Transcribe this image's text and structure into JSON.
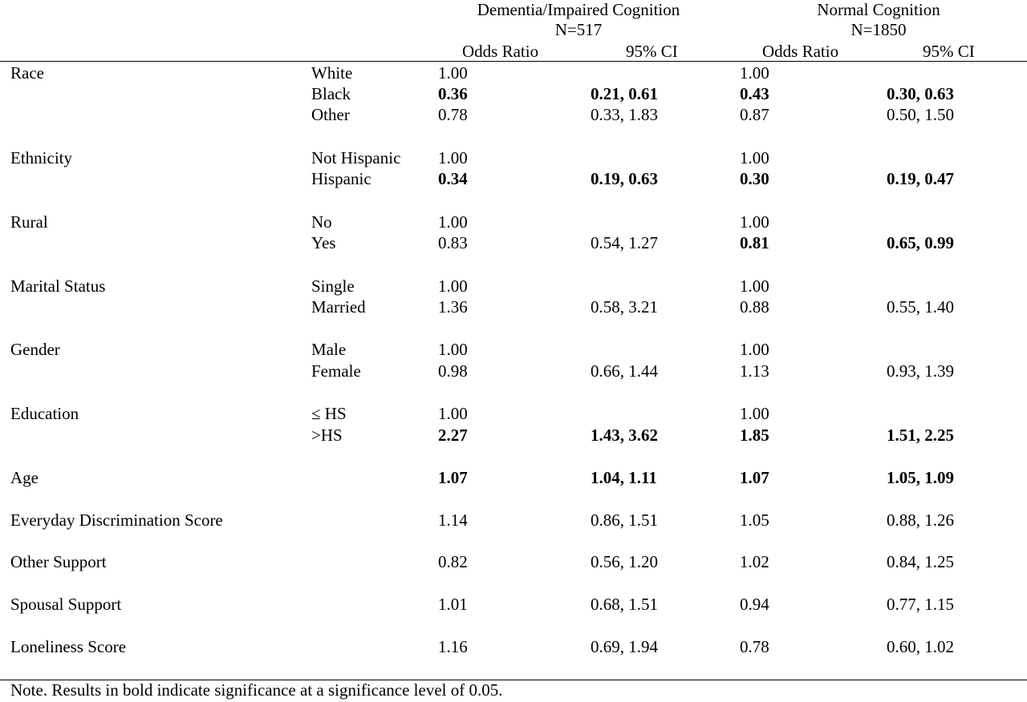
{
  "header": {
    "group1": {
      "name": "Dementia/Impaired Cognition",
      "n": "N=517"
    },
    "group2": {
      "name": "Normal Cognition",
      "n": "N=1850"
    },
    "cols": [
      "Odds Ratio",
      "95% CI",
      "Odds Ratio",
      "95% CI"
    ]
  },
  "rows": [
    {
      "var": "Race",
      "level": "White",
      "or1": "1.00",
      "ci1": "",
      "or2": "1.00",
      "ci2": "",
      "b1": false,
      "b2": false
    },
    {
      "var": "",
      "level": "Black",
      "or1": "0.36",
      "ci1": "0.21, 0.61",
      "or2": "0.43",
      "ci2": "0.30, 0.63",
      "b1": true,
      "b2": true
    },
    {
      "var": "",
      "level": "Other",
      "or1": "0.78",
      "ci1": "0.33, 1.83",
      "or2": "0.87",
      "ci2": "0.50, 1.50",
      "b1": false,
      "b2": false
    },
    {
      "var": "Ethnicity",
      "level": "Not Hispanic",
      "or1": "1.00",
      "ci1": "",
      "or2": "1.00",
      "ci2": "",
      "b1": false,
      "b2": false
    },
    {
      "var": "",
      "level": "Hispanic",
      "or1": "0.34",
      "ci1": "0.19, 0.63",
      "or2": "0.30",
      "ci2": "0.19, 0.47",
      "b1": true,
      "b2": true
    },
    {
      "var": "Rural",
      "level": "No",
      "or1": "1.00",
      "ci1": "",
      "or2": "1.00",
      "ci2": "",
      "b1": false,
      "b2": false
    },
    {
      "var": "",
      "level": "Yes",
      "or1": "0.83",
      "ci1": "0.54, 1.27",
      "or2": "0.81",
      "ci2": "0.65, 0.99",
      "b1": false,
      "b2": true
    },
    {
      "var": "Marital Status",
      "level": "Single",
      "or1": "1.00",
      "ci1": "",
      "or2": "1.00",
      "ci2": "",
      "b1": false,
      "b2": false
    },
    {
      "var": "",
      "level": "Married",
      "or1": "1.36",
      "ci1": "0.58, 3.21",
      "or2": "0.88",
      "ci2": "0.55, 1.40",
      "b1": false,
      "b2": false
    },
    {
      "var": "Gender",
      "level": "Male",
      "or1": "1.00",
      "ci1": "",
      "or2": "1.00",
      "ci2": "",
      "b1": false,
      "b2": false
    },
    {
      "var": "",
      "level": "Female",
      "or1": "0.98",
      "ci1": "0.66, 1.44",
      "or2": "1.13",
      "ci2": "0.93, 1.39",
      "b1": false,
      "b2": false
    },
    {
      "var": "Education",
      "level": "≤ HS",
      "or1": "1.00",
      "ci1": "",
      "or2": "1.00",
      "ci2": "",
      "b1": false,
      "b2": false
    },
    {
      "var": "",
      "level": ">HS",
      "or1": "2.27",
      "ci1": "1.43, 3.62",
      "or2": "1.85",
      "ci2": "1.51, 2.25",
      "b1": true,
      "b2": true
    },
    {
      "var": "Age",
      "level": "",
      "or1": "1.07",
      "ci1": "1.04, 1.11",
      "or2": "1.07",
      "ci2": "1.05, 1.09",
      "b1": true,
      "b2": true
    },
    {
      "var": "Everyday Discrimination Score",
      "level": "",
      "or1": "1.14",
      "ci1": "0.86, 1.51",
      "or2": "1.05",
      "ci2": "0.88, 1.26",
      "b1": false,
      "b2": false
    },
    {
      "var": "Other Support",
      "level": "",
      "or1": "0.82",
      "ci1": "0.56, 1.20",
      "or2": "1.02",
      "ci2": "0.84, 1.25",
      "b1": false,
      "b2": false
    },
    {
      "var": "Spousal Support",
      "level": "",
      "or1": "1.01",
      "ci1": "0.68, 1.51",
      "or2": "0.94",
      "ci2": "0.77, 1.15",
      "b1": false,
      "b2": false
    },
    {
      "var": "Loneliness Score",
      "level": "",
      "or1": "1.16",
      "ci1": "0.69, 1.94",
      "or2": "0.78",
      "ci2": "0.60, 1.02",
      "b1": false,
      "b2": false
    }
  ],
  "note": "Note. Results in bold indicate significance at a significance level of 0.05."
}
